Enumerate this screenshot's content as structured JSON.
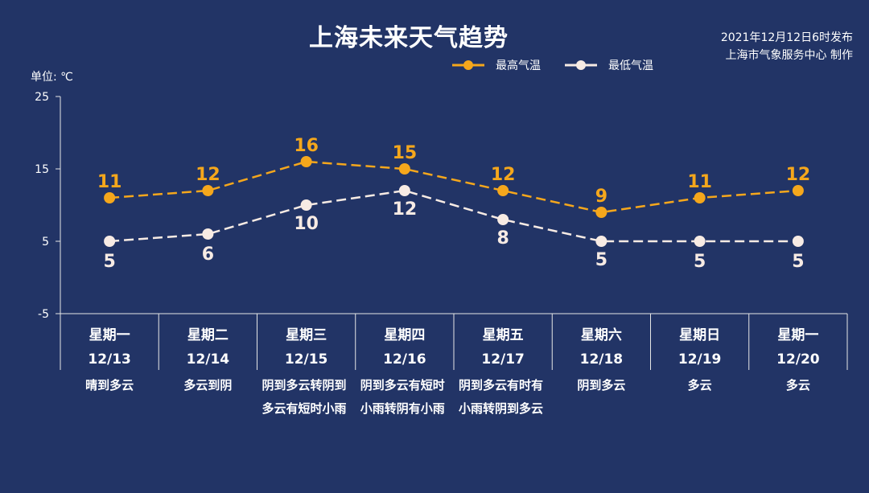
{
  "title": "上海未来天气趋势",
  "issued": {
    "time": "2021年12月12日6时发布",
    "producer": "上海市气象服务中心 制作"
  },
  "unit_label": "单位: ℃",
  "legend": [
    {
      "name": "最高气温",
      "color": "#f5a71c"
    },
    {
      "name": "最低气温",
      "color": "#f7ebe4"
    }
  ],
  "chart_data": {
    "type": "line",
    "title": "上海未来天气趋势",
    "ylabel": "单位: ℃",
    "ylim": [
      -5,
      25
    ],
    "yticks": [
      -5,
      5,
      15,
      25
    ],
    "grid": false,
    "legend_position": "top",
    "days": [
      {
        "weekday": "星期一",
        "date": "12/13",
        "weather": "晴到多云"
      },
      {
        "weekday": "星期二",
        "date": "12/14",
        "weather": "多云到阴"
      },
      {
        "weekday": "星期三",
        "date": "12/15",
        "weather": "阴到多云转阴到多云有短时小雨"
      },
      {
        "weekday": "星期四",
        "date": "12/16",
        "weather": "阴到多云有短时小雨转阴有小雨"
      },
      {
        "weekday": "星期五",
        "date": "12/17",
        "weather": "阴到多云有时有小雨转阴到多云"
      },
      {
        "weekday": "星期六",
        "date": "12/18",
        "weather": "阴到多云"
      },
      {
        "weekday": "星期日",
        "date": "12/19",
        "weather": "多云"
      },
      {
        "weekday": "星期一",
        "date": "12/20",
        "weather": "多云"
      }
    ],
    "series": [
      {
        "name": "最高气温",
        "color": "#f5a71c",
        "values": [
          11,
          12,
          16,
          15,
          12,
          9,
          11,
          12
        ]
      },
      {
        "name": "最低气温",
        "color": "#f7ebe4",
        "values": [
          5,
          6,
          10,
          12,
          8,
          5,
          5,
          5
        ]
      }
    ]
  }
}
